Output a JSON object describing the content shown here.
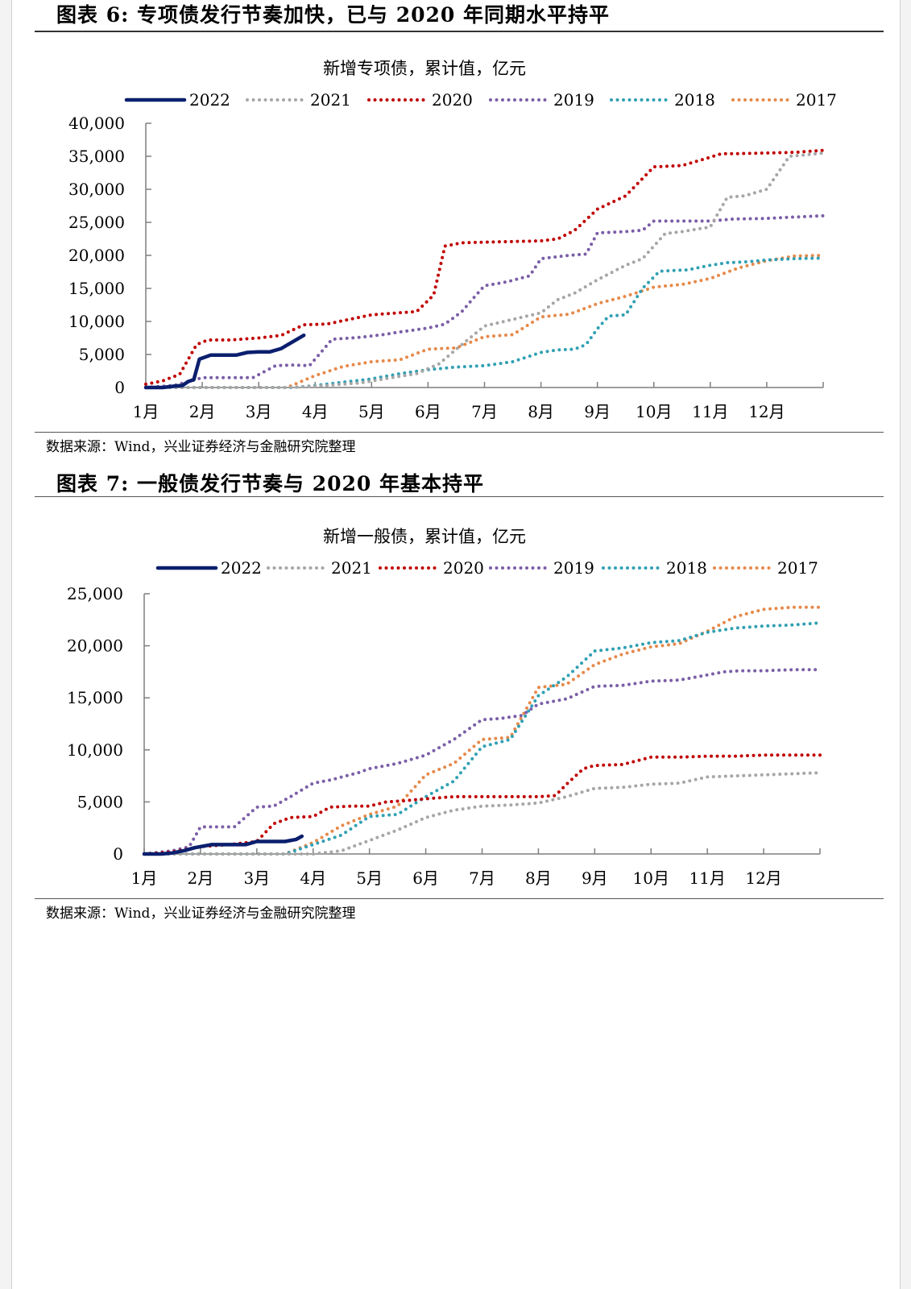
{
  "figures": [
    {
      "figure_title": "图表 6: 专项债发行节奏加快，已与 2020 年同期水平持平",
      "source_note": "数据来源：Wind，兴业证券经济与金融研究院整理"
    },
    {
      "figure_title": "图表 7: 一般债发行节奏与 2020 年基本持平",
      "source_note": "数据来源：Wind，兴业证券经济与金融研究院整理"
    }
  ],
  "chart_data": [
    {
      "type": "line",
      "title": "新增专项债，累计值，亿元",
      "xlabel": "",
      "ylabel": "",
      "x_tick_labels": [
        "1月",
        "2月",
        "3月",
        "4月",
        "5月",
        "6月",
        "7月",
        "8月",
        "9月",
        "10月",
        "11月",
        "12月"
      ],
      "y_tick_labels": [
        "0",
        "5,000",
        "10,000",
        "15,000",
        "20,000",
        "25,000",
        "30,000",
        "35,000",
        "40,000"
      ],
      "ylim": [
        0,
        40000
      ],
      "xlim": [
        1,
        13
      ],
      "legend_position": "top",
      "grid": false,
      "series": [
        {
          "name": "2022",
          "color": "#0b1f6e",
          "style": "solid",
          "x": [
            1.0,
            1.3,
            1.5,
            1.65,
            1.75,
            1.85,
            1.95,
            2.15,
            2.3,
            2.6,
            2.8,
            3.0,
            3.2,
            3.4,
            3.8
          ],
          "y": [
            0,
            0,
            200,
            300,
            900,
            1200,
            4300,
            4900,
            4900,
            4900,
            5300,
            5400,
            5400,
            5900,
            7900
          ]
        },
        {
          "name": "2021",
          "color": "#a6a6a6",
          "style": "dotted",
          "x": [
            1.0,
            3.5,
            4.2,
            4.8,
            5.5,
            5.8,
            6.2,
            6.5,
            7.0,
            7.5,
            8.0,
            8.3,
            8.6,
            9.0,
            9.5,
            9.8,
            10.2,
            10.5,
            11.0,
            11.3,
            11.6,
            12.0,
            12.4,
            12.8,
            13.0
          ],
          "y": [
            0,
            0,
            300,
            700,
            1700,
            2100,
            3600,
            5800,
            9300,
            10300,
            11300,
            13300,
            14300,
            16300,
            18500,
            19500,
            23300,
            23600,
            24300,
            28800,
            29000,
            30000,
            35000,
            35300,
            35500
          ]
        },
        {
          "name": "2020",
          "color": "#c00000",
          "style": "dotted",
          "x": [
            1.0,
            1.3,
            1.6,
            1.9,
            2.1,
            2.5,
            3.0,
            3.4,
            3.8,
            4.2,
            5.0,
            5.3,
            5.8,
            6.1,
            6.3,
            6.6,
            7.0,
            7.5,
            8.0,
            8.3,
            8.6,
            9.0,
            9.5,
            10.0,
            10.5,
            10.9,
            11.2,
            11.5,
            12.0,
            12.5,
            13.0
          ],
          "y": [
            500,
            1000,
            2000,
            6500,
            7200,
            7200,
            7500,
            7900,
            9500,
            9600,
            11000,
            11200,
            11500,
            14000,
            21400,
            21900,
            22000,
            22100,
            22200,
            22500,
            23800,
            27000,
            29000,
            33400,
            33600,
            34600,
            35400,
            35400,
            35500,
            35600,
            35900
          ]
        },
        {
          "name": "2019",
          "color": "#7b5ea7",
          "style": "dotted",
          "x": [
            1.0,
            1.5,
            1.8,
            2.0,
            2.2,
            2.6,
            2.9,
            3.3,
            3.6,
            3.9,
            4.1,
            4.3,
            4.8,
            5.2,
            5.5,
            6.0,
            6.3,
            6.6,
            6.8,
            7.0,
            7.4,
            7.8,
            8.0,
            8.5,
            8.8,
            9.0,
            9.5,
            9.8,
            10.0,
            10.5,
            11.0,
            11.4,
            12.0,
            12.5,
            13.0
          ],
          "y": [
            0,
            300,
            1000,
            1500,
            1500,
            1500,
            1500,
            3300,
            3400,
            3300,
            5300,
            7300,
            7600,
            8000,
            8400,
            9000,
            9600,
            11500,
            13500,
            15400,
            16000,
            16900,
            19500,
            20000,
            20200,
            23400,
            23600,
            23800,
            25200,
            25200,
            25200,
            25500,
            25600,
            25800,
            26000
          ]
        },
        {
          "name": "2018",
          "color": "#31a0b3",
          "style": "dotted",
          "x": [
            1.0,
            3.6,
            4.0,
            4.5,
            5.0,
            5.5,
            6.0,
            6.5,
            7.0,
            7.5,
            8.0,
            8.3,
            8.6,
            8.8,
            9.0,
            9.2,
            9.5,
            9.8,
            10.1,
            10.3,
            10.6,
            11.0,
            11.3,
            11.6,
            12.0,
            12.5,
            13.0
          ],
          "y": [
            0,
            0,
            300,
            800,
            1300,
            2100,
            2700,
            3100,
            3300,
            3900,
            5300,
            5700,
            5800,
            6500,
            8900,
            10800,
            11000,
            15000,
            17600,
            17700,
            17800,
            18500,
            18900,
            19000,
            19300,
            19500,
            19600
          ]
        },
        {
          "name": "2017",
          "color": "#e6894a",
          "style": "dotted",
          "x": [
            1.0,
            3.5,
            4.0,
            4.5,
            5.0,
            5.5,
            6.0,
            6.5,
            7.0,
            7.5,
            8.0,
            8.5,
            9.0,
            9.5,
            10.0,
            10.5,
            11.0,
            11.5,
            12.0,
            12.5,
            13.0
          ],
          "y": [
            0,
            0,
            1800,
            3200,
            3900,
            4200,
            5800,
            6000,
            7700,
            8000,
            10700,
            11100,
            12700,
            13800,
            15200,
            15600,
            16500,
            18100,
            19200,
            19900,
            20000
          ]
        }
      ]
    },
    {
      "type": "line",
      "title": "新增一般债，累计值，亿元",
      "xlabel": "",
      "ylabel": "",
      "x_tick_labels": [
        "1月",
        "2月",
        "3月",
        "4月",
        "5月",
        "6月",
        "7月",
        "8月",
        "9月",
        "10月",
        "11月",
        "12月"
      ],
      "y_tick_labels": [
        "0",
        "5,000",
        "10,000",
        "15,000",
        "20,000",
        "25,000"
      ],
      "ylim": [
        0,
        25000
      ],
      "xlim": [
        1,
        13
      ],
      "legend_position": "top",
      "grid": false,
      "series": [
        {
          "name": "2022",
          "color": "#0b1f6e",
          "style": "solid",
          "x": [
            1.0,
            1.3,
            1.5,
            1.7,
            1.9,
            2.2,
            2.5,
            2.8,
            3.0,
            3.3,
            3.5,
            3.7,
            3.8
          ],
          "y": [
            0,
            0,
            100,
            300,
            600,
            900,
            900,
            900,
            1200,
            1200,
            1200,
            1400,
            1700
          ]
        },
        {
          "name": "2021",
          "color": "#a6a6a6",
          "style": "dotted",
          "x": [
            1.0,
            4.0,
            4.5,
            5.0,
            5.5,
            6.0,
            6.5,
            7.0,
            7.5,
            8.0,
            8.5,
            9.0,
            9.5,
            10.0,
            10.5,
            11.0,
            11.5,
            12.0,
            12.5,
            13.0
          ],
          "y": [
            0,
            0,
            300,
            1300,
            2300,
            3500,
            4200,
            4600,
            4700,
            4900,
            5500,
            6300,
            6400,
            6700,
            6800,
            7400,
            7500,
            7600,
            7700,
            7800
          ]
        },
        {
          "name": "2020",
          "color": "#c00000",
          "style": "dotted",
          "x": [
            1.0,
            1.5,
            2.0,
            2.5,
            3.0,
            3.3,
            3.6,
            4.0,
            4.3,
            4.7,
            5.0,
            5.3,
            5.6,
            6.0,
            6.5,
            7.0,
            7.5,
            8.0,
            8.3,
            8.5,
            8.8,
            9.0,
            9.5,
            10.0,
            10.5,
            11.0,
            11.5,
            12.0,
            12.5,
            13.0
          ],
          "y": [
            0,
            200,
            700,
            900,
            1200,
            2900,
            3500,
            3600,
            4500,
            4600,
            4600,
            5000,
            5100,
            5300,
            5500,
            5500,
            5500,
            5500,
            5600,
            6700,
            8200,
            8500,
            8600,
            9300,
            9300,
            9400,
            9400,
            9500,
            9500,
            9500
          ]
        },
        {
          "name": "2019",
          "color": "#7b5ea7",
          "style": "dotted",
          "x": [
            1.0,
            1.5,
            1.8,
            2.0,
            2.3,
            2.6,
            3.0,
            3.3,
            3.6,
            4.0,
            4.3,
            4.8,
            5.0,
            5.5,
            6.0,
            6.5,
            7.0,
            7.3,
            7.7,
            8.0,
            8.5,
            9.0,
            9.5,
            10.0,
            10.5,
            11.0,
            11.3,
            11.6,
            12.0,
            12.5,
            13.0
          ],
          "y": [
            0,
            300,
            700,
            2600,
            2600,
            2600,
            4500,
            4600,
            5500,
            6800,
            7100,
            7800,
            8200,
            8700,
            9500,
            11000,
            12900,
            13000,
            13300,
            14400,
            14900,
            16100,
            16200,
            16600,
            16700,
            17200,
            17500,
            17600,
            17600,
            17700,
            17700
          ]
        },
        {
          "name": "2018",
          "color": "#31a0b3",
          "style": "dotted",
          "x": [
            1.0,
            3.5,
            4.0,
            4.5,
            5.0,
            5.5,
            6.0,
            6.5,
            7.0,
            7.5,
            8.0,
            8.5,
            9.0,
            9.5,
            10.0,
            10.5,
            11.0,
            11.5,
            12.0,
            12.5,
            13.0
          ],
          "y": [
            0,
            0,
            900,
            1800,
            3600,
            3800,
            5500,
            7000,
            10300,
            11000,
            15200,
            17000,
            19500,
            19800,
            20300,
            20500,
            21300,
            21700,
            21900,
            22000,
            22200
          ]
        },
        {
          "name": "2017",
          "color": "#e6894a",
          "style": "dotted",
          "x": [
            1.0,
            3.5,
            4.0,
            4.5,
            5.0,
            5.5,
            6.0,
            6.5,
            7.0,
            7.5,
            8.0,
            8.5,
            9.0,
            9.5,
            10.0,
            10.5,
            11.0,
            11.5,
            12.0,
            12.5,
            13.0
          ],
          "y": [
            0,
            0,
            1100,
            2700,
            3800,
            4600,
            7600,
            8700,
            11000,
            11200,
            16000,
            16300,
            18200,
            19200,
            19900,
            20200,
            21400,
            22800,
            23500,
            23700,
            23700
          ]
        }
      ]
    }
  ]
}
